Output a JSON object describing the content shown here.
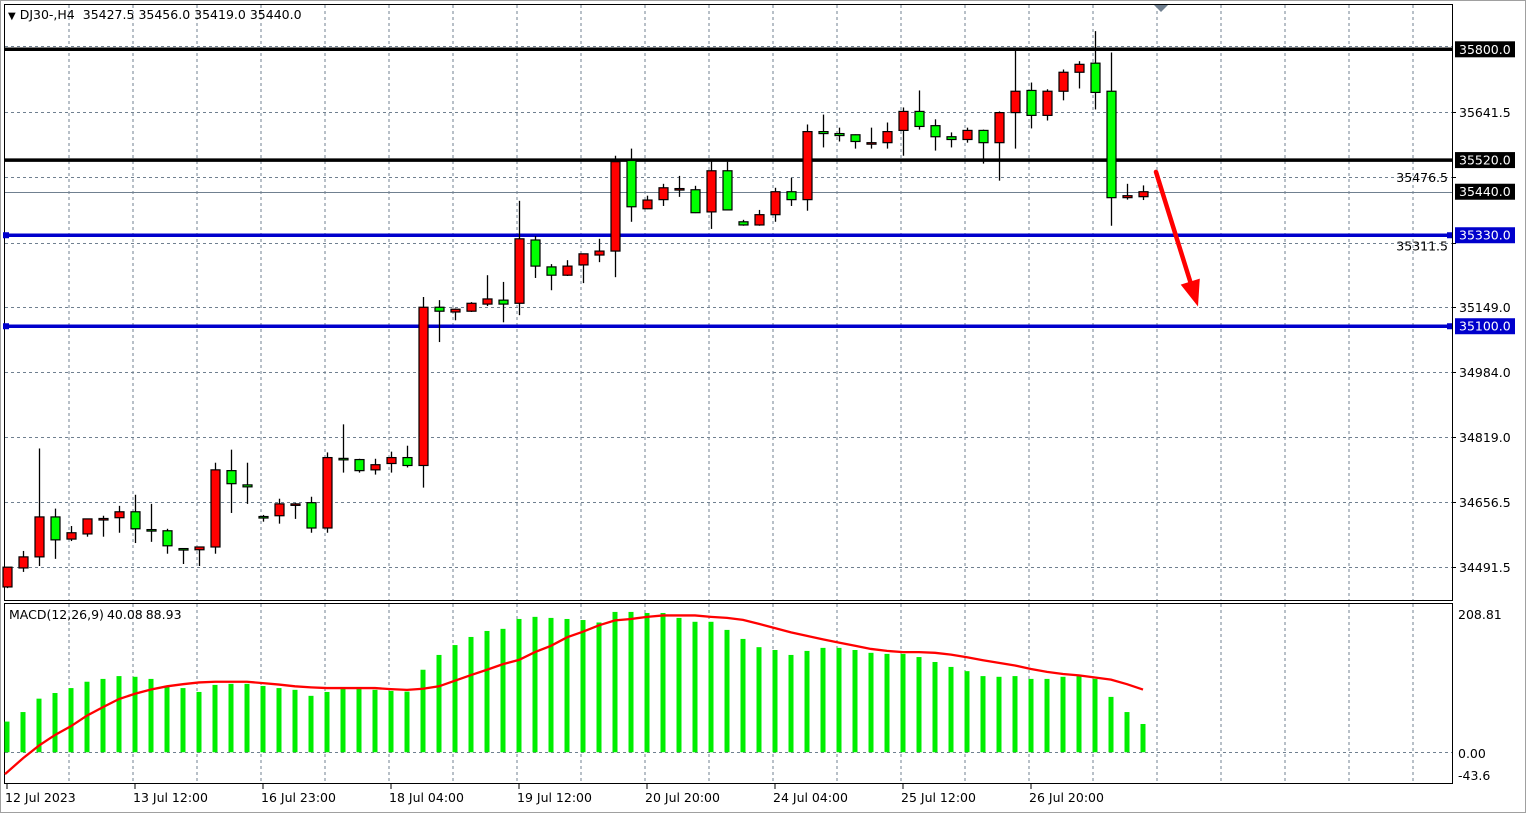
{
  "header": {
    "menu_icon": "triangle-down-icon",
    "symbol": "DJ30-,H4",
    "open": "35427.5",
    "high": "35456.0",
    "low": "35419.0",
    "close": "35440.0"
  },
  "macd": {
    "label": "MACD(12,26,9)",
    "main_value": "40.08",
    "signal_value": "88.93",
    "scale_top": "208.81",
    "scale_zero": "0.00",
    "scale_bottom": "-43.6"
  },
  "colors": {
    "bull_candle": "#ff0000",
    "bear_candle": "#00ff00",
    "candle_outline": "#000000",
    "support_level": "#0000cc",
    "resistance_level": "#000000",
    "histogram": "#00ee00",
    "signal_line": "#ff0000",
    "arrow": "#ff0000",
    "grid": "#708090"
  },
  "chart_data": [
    {
      "type": "candlestick",
      "ylim": [
        34408,
        35912
      ],
      "price_ticks": [
        "35641.5",
        "35476.5",
        "35311.5",
        "35149.0",
        "34984.0",
        "34819.0",
        "34656.5",
        "34491.5"
      ],
      "x_ticks": [
        {
          "index": 0,
          "label": "12 Jul 2023"
        },
        {
          "index": 8,
          "label": "13 Jul 12:00"
        },
        {
          "index": 16,
          "label": "16 Jul 23:00"
        },
        {
          "index": 24,
          "label": "18 Jul 04:00"
        },
        {
          "index": 32,
          "label": "19 Jul 12:00"
        },
        {
          "index": 40,
          "label": "20 Jul 20:00"
        },
        {
          "index": 48,
          "label": "24 Jul 04:00"
        },
        {
          "index": 56,
          "label": "25 Jul 12:00"
        },
        {
          "index": 64,
          "label": "26 Jul 20:00"
        }
      ],
      "levels": [
        {
          "price": "35800.0",
          "color": "#000000"
        },
        {
          "price": "35520.0",
          "color": "#000000"
        },
        {
          "price": "35330.0",
          "color": "#0000cc"
        },
        {
          "price": "35100.0",
          "color": "#0000cc"
        }
      ],
      "current_price": "35440.0",
      "annotation": {
        "type": "arrow",
        "direction": "down",
        "from_index": 72,
        "from_price": 35490,
        "to_index": 74,
        "to_price": 35150
      },
      "ohlc": [
        [
          34441,
          34491,
          34438,
          34491
        ],
        [
          34489,
          34532,
          34479,
          34517
        ],
        [
          34517,
          34791,
          34494,
          34618
        ],
        [
          34618,
          34639,
          34512,
          34560
        ],
        [
          34562,
          34595,
          34557,
          34578
        ],
        [
          34575,
          34613,
          34568,
          34613
        ],
        [
          34612,
          34621,
          34568,
          34614
        ],
        [
          34616,
          34646,
          34578,
          34631
        ],
        [
          34631,
          34674,
          34552,
          34588
        ],
        [
          34586,
          34651,
          34555,
          34585
        ],
        [
          34583,
          34588,
          34525,
          34545
        ],
        [
          34538,
          34538,
          34499,
          34537
        ],
        [
          34535,
          34542,
          34494,
          34542
        ],
        [
          34542,
          34755,
          34525,
          34737
        ],
        [
          34735,
          34788,
          34628,
          34702
        ],
        [
          34699,
          34755,
          34651,
          34694
        ],
        [
          34619,
          34623,
          34606,
          34618
        ],
        [
          34621,
          34664,
          34601,
          34651
        ],
        [
          34650,
          34653,
          34613,
          34651
        ],
        [
          34654,
          34669,
          34578,
          34590
        ],
        [
          34590,
          34781,
          34578,
          34768
        ],
        [
          34766,
          34852,
          34730,
          34765
        ],
        [
          34763,
          34765,
          34730,
          34735
        ],
        [
          34737,
          34765,
          34725,
          34750
        ],
        [
          34753,
          34783,
          34730,
          34768
        ],
        [
          34768,
          34798,
          34743,
          34748
        ],
        [
          34748,
          35174,
          34692,
          35148
        ],
        [
          35148,
          35166,
          35060,
          35138
        ],
        [
          35136,
          35145,
          35115,
          35143
        ],
        [
          35138,
          35161,
          35136,
          35158
        ],
        [
          35156,
          35229,
          35151,
          35169
        ],
        [
          35166,
          35212,
          35110,
          35156
        ],
        [
          35158,
          35417,
          35128,
          35321
        ],
        [
          35318,
          35328,
          35222,
          35252
        ],
        [
          35250,
          35257,
          35191,
          35229
        ],
        [
          35229,
          35267,
          35227,
          35252
        ],
        [
          35255,
          35284,
          35209,
          35283
        ],
        [
          35280,
          35321,
          35262,
          35290
        ],
        [
          35290,
          35531,
          35224,
          35516
        ],
        [
          35519,
          35549,
          35364,
          35402
        ],
        [
          35397,
          35430,
          35396,
          35419
        ],
        [
          35420,
          35460,
          35404,
          35450
        ],
        [
          35447,
          35480,
          35427,
          35448
        ],
        [
          35445,
          35455,
          35386,
          35387
        ],
        [
          35389,
          35519,
          35346,
          35493
        ],
        [
          35493,
          35516,
          35393,
          35394
        ],
        [
          35364,
          35369,
          35354,
          35356
        ],
        [
          35356,
          35394,
          35354,
          35382
        ],
        [
          35382,
          35450,
          35364,
          35440
        ],
        [
          35440,
          35475,
          35404,
          35420
        ],
        [
          35420,
          35610,
          35392,
          35592
        ],
        [
          35592,
          35635,
          35552,
          35587
        ],
        [
          35587,
          35602,
          35567,
          35582
        ],
        [
          35584,
          35585,
          35549,
          35567
        ],
        [
          35563,
          35602,
          35549,
          35564
        ],
        [
          35564,
          35615,
          35549,
          35592
        ],
        [
          35595,
          35653,
          35531,
          35643
        ],
        [
          35643,
          35696,
          35597,
          35605
        ],
        [
          35607,
          35623,
          35544,
          35579
        ],
        [
          35579,
          35590,
          35552,
          35572
        ],
        [
          35572,
          35602,
          35564,
          35595
        ],
        [
          35595,
          35597,
          35511,
          35564
        ],
        [
          35564,
          35643,
          35468,
          35640
        ],
        [
          35640,
          35800,
          35549,
          35694
        ],
        [
          35696,
          35716,
          35600,
          35633
        ],
        [
          35633,
          35699,
          35620,
          35694
        ],
        [
          35694,
          35749,
          35671,
          35742
        ],
        [
          35742,
          35770,
          35701,
          35762
        ],
        [
          35765,
          35846,
          35648,
          35691
        ],
        [
          35694,
          35792,
          35354,
          35425
        ],
        [
          35425,
          35460,
          35420,
          35430
        ],
        [
          35427.5,
          35456,
          35419,
          35440
        ]
      ]
    },
    {
      "type": "bar+line",
      "name": "MACD(12,26,9)",
      "ylim": [
        -43.6,
        208.81
      ],
      "histogram": [
        43.5,
        57,
        76,
        84,
        91,
        100,
        104,
        108,
        107,
        104,
        94.5,
        91,
        85.5,
        95.5,
        97,
        97,
        94,
        91,
        88.5,
        80,
        85.5,
        90,
        90,
        88.5,
        87,
        86,
        117,
        138,
        152,
        163.5,
        172,
        175,
        189,
        192,
        190.5,
        189,
        187.5,
        184,
        199,
        199,
        197.5,
        197.5,
        190.5,
        185,
        185,
        173.5,
        160.7,
        149,
        145,
        138,
        143.7,
        148,
        148,
        145,
        141,
        139.5,
        139.5,
        135,
        128,
        121,
        115,
        108,
        107,
        108,
        104,
        104,
        107,
        108,
        104,
        78.5,
        57,
        40.08
      ],
      "signal": [
        -31,
        -8.5,
        9.5,
        24.5,
        37,
        52,
        64,
        75.5,
        83,
        89,
        93.5,
        96.5,
        99,
        100,
        100,
        100,
        98,
        96,
        93.5,
        92,
        91,
        91,
        91,
        91,
        89.5,
        88.5,
        90,
        93.5,
        101.5,
        109.5,
        117,
        125,
        131,
        142,
        151,
        163,
        171,
        180,
        187,
        189,
        192,
        194,
        194,
        194,
        192,
        190.5,
        187.7,
        182,
        176,
        170,
        165,
        160,
        155.5,
        151,
        146.5,
        143.7,
        142,
        142,
        141,
        138.5,
        134.7,
        130.5,
        126.7,
        123,
        118,
        114,
        111,
        109,
        106,
        103,
        96.5,
        88.93
      ]
    }
  ]
}
